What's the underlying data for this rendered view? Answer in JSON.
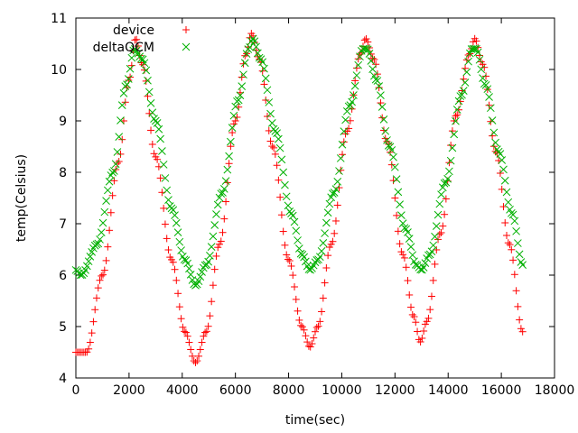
{
  "chart_data": {
    "type": "scatter",
    "xlabel": "time(sec)",
    "ylabel": "temp(Celsius)",
    "xlim": [
      0,
      18000
    ],
    "ylim": [
      4,
      11
    ],
    "x_ticks": [
      0,
      2000,
      4000,
      6000,
      8000,
      10000,
      12000,
      14000,
      16000,
      18000
    ],
    "y_ticks": [
      4,
      5,
      6,
      7,
      8,
      9,
      10,
      11
    ],
    "legend_position": "top-left",
    "grid": false,
    "series": [
      {
        "name": "device",
        "marker": "+",
        "color": "#ff0000",
        "points": [
          [
            0,
            4.5
          ],
          [
            400,
            4.5
          ],
          [
            1000,
            6.0
          ],
          [
            1600,
            8.2
          ],
          [
            2000,
            9.8
          ],
          [
            2250,
            10.6
          ],
          [
            2500,
            10.1
          ],
          [
            3000,
            8.3
          ],
          [
            3600,
            6.3
          ],
          [
            4100,
            4.9
          ],
          [
            4500,
            4.3
          ],
          [
            4900,
            4.9
          ],
          [
            5400,
            6.6
          ],
          [
            6000,
            9.0
          ],
          [
            6400,
            10.3
          ],
          [
            6600,
            10.7
          ],
          [
            6900,
            10.2
          ],
          [
            7400,
            8.5
          ],
          [
            8000,
            6.3
          ],
          [
            8500,
            5.0
          ],
          [
            8800,
            4.6
          ],
          [
            9100,
            5.0
          ],
          [
            9600,
            6.6
          ],
          [
            10200,
            8.8
          ],
          [
            10700,
            10.3
          ],
          [
            10900,
            10.6
          ],
          [
            11200,
            10.2
          ],
          [
            11700,
            8.6
          ],
          [
            12300,
            6.4
          ],
          [
            12700,
            5.2
          ],
          [
            12950,
            4.7
          ],
          [
            13200,
            5.1
          ],
          [
            13700,
            6.8
          ],
          [
            14300,
            9.1
          ],
          [
            14800,
            10.3
          ],
          [
            15000,
            10.6
          ],
          [
            15300,
            10.1
          ],
          [
            15800,
            8.4
          ],
          [
            16300,
            6.6
          ],
          [
            16800,
            4.9
          ]
        ]
      },
      {
        "name": "deltaQCM",
        "marker": "x",
        "color": "#00b000",
        "points": [
          [
            0,
            6.1
          ],
          [
            200,
            6.0
          ],
          [
            800,
            6.6
          ],
          [
            1400,
            8.0
          ],
          [
            1900,
            9.7
          ],
          [
            2200,
            10.4
          ],
          [
            2500,
            10.2
          ],
          [
            3000,
            9.0
          ],
          [
            3600,
            7.3
          ],
          [
            4100,
            6.3
          ],
          [
            4500,
            5.8
          ],
          [
            4900,
            6.2
          ],
          [
            5500,
            7.6
          ],
          [
            6100,
            9.4
          ],
          [
            6500,
            10.4
          ],
          [
            6650,
            10.6
          ],
          [
            6950,
            10.2
          ],
          [
            7500,
            8.8
          ],
          [
            8100,
            7.2
          ],
          [
            8500,
            6.4
          ],
          [
            8800,
            6.1
          ],
          [
            9100,
            6.3
          ],
          [
            9700,
            7.6
          ],
          [
            10300,
            9.3
          ],
          [
            10800,
            10.4
          ],
          [
            10950,
            10.4
          ],
          [
            11300,
            9.8
          ],
          [
            11800,
            8.5
          ],
          [
            12400,
            6.9
          ],
          [
            12800,
            6.2
          ],
          [
            13000,
            6.1
          ],
          [
            13300,
            6.4
          ],
          [
            13900,
            7.8
          ],
          [
            14500,
            9.5
          ],
          [
            14900,
            10.4
          ],
          [
            15050,
            10.4
          ],
          [
            15400,
            9.7
          ],
          [
            15900,
            8.4
          ],
          [
            16400,
            7.2
          ],
          [
            16800,
            6.2
          ]
        ]
      }
    ]
  }
}
